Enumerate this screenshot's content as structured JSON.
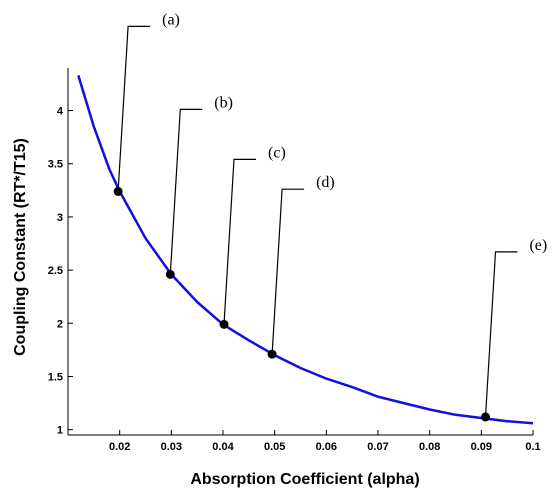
{
  "chart_data": {
    "type": "line",
    "xlabel": "Absorption Coefficient (alpha)",
    "ylabel": "Coupling Constant (RT*/T15)",
    "xlim": [
      0.01,
      0.1
    ],
    "ylim": [
      0.95,
      4.4
    ],
    "xticks": [
      0.02,
      0.03,
      0.04,
      0.05,
      0.06,
      0.07,
      0.08,
      0.09,
      0.1
    ],
    "xtick_labels": [
      "0.02",
      "0.03",
      "0.04",
      "0.05",
      "0.06",
      "0.07",
      "0.08",
      "0.09",
      "0.1"
    ],
    "yticks": [
      1,
      1.5,
      2,
      2.5,
      3,
      3.5,
      4
    ],
    "ytick_labels": [
      "1",
      "1.5",
      "2",
      "2.5",
      "3",
      "3.5",
      "4"
    ],
    "grid": false,
    "line_color": "#1010e0",
    "series": [
      {
        "x": [
          0.012,
          0.015,
          0.018,
          0.02,
          0.025,
          0.03,
          0.035,
          0.04,
          0.045,
          0.05,
          0.055,
          0.06,
          0.065,
          0.07,
          0.075,
          0.08,
          0.085,
          0.09,
          0.095,
          0.1
        ],
        "values": [
          4.33,
          3.85,
          3.45,
          3.24,
          2.8,
          2.46,
          2.2,
          1.99,
          1.84,
          1.7,
          1.58,
          1.48,
          1.4,
          1.31,
          1.25,
          1.19,
          1.14,
          1.11,
          1.08,
          1.06
        ]
      }
    ],
    "markers": [
      {
        "label": "(a)",
        "x": 0.0197,
        "y": 3.24
      },
      {
        "label": "(b)",
        "x": 0.0298,
        "y": 2.46
      },
      {
        "label": "(c)",
        "x": 0.0402,
        "y": 1.99
      },
      {
        "label": "(d)",
        "x": 0.0495,
        "y": 1.71
      },
      {
        "label": "(e)",
        "x": 0.0908,
        "y": 1.12
      }
    ]
  }
}
